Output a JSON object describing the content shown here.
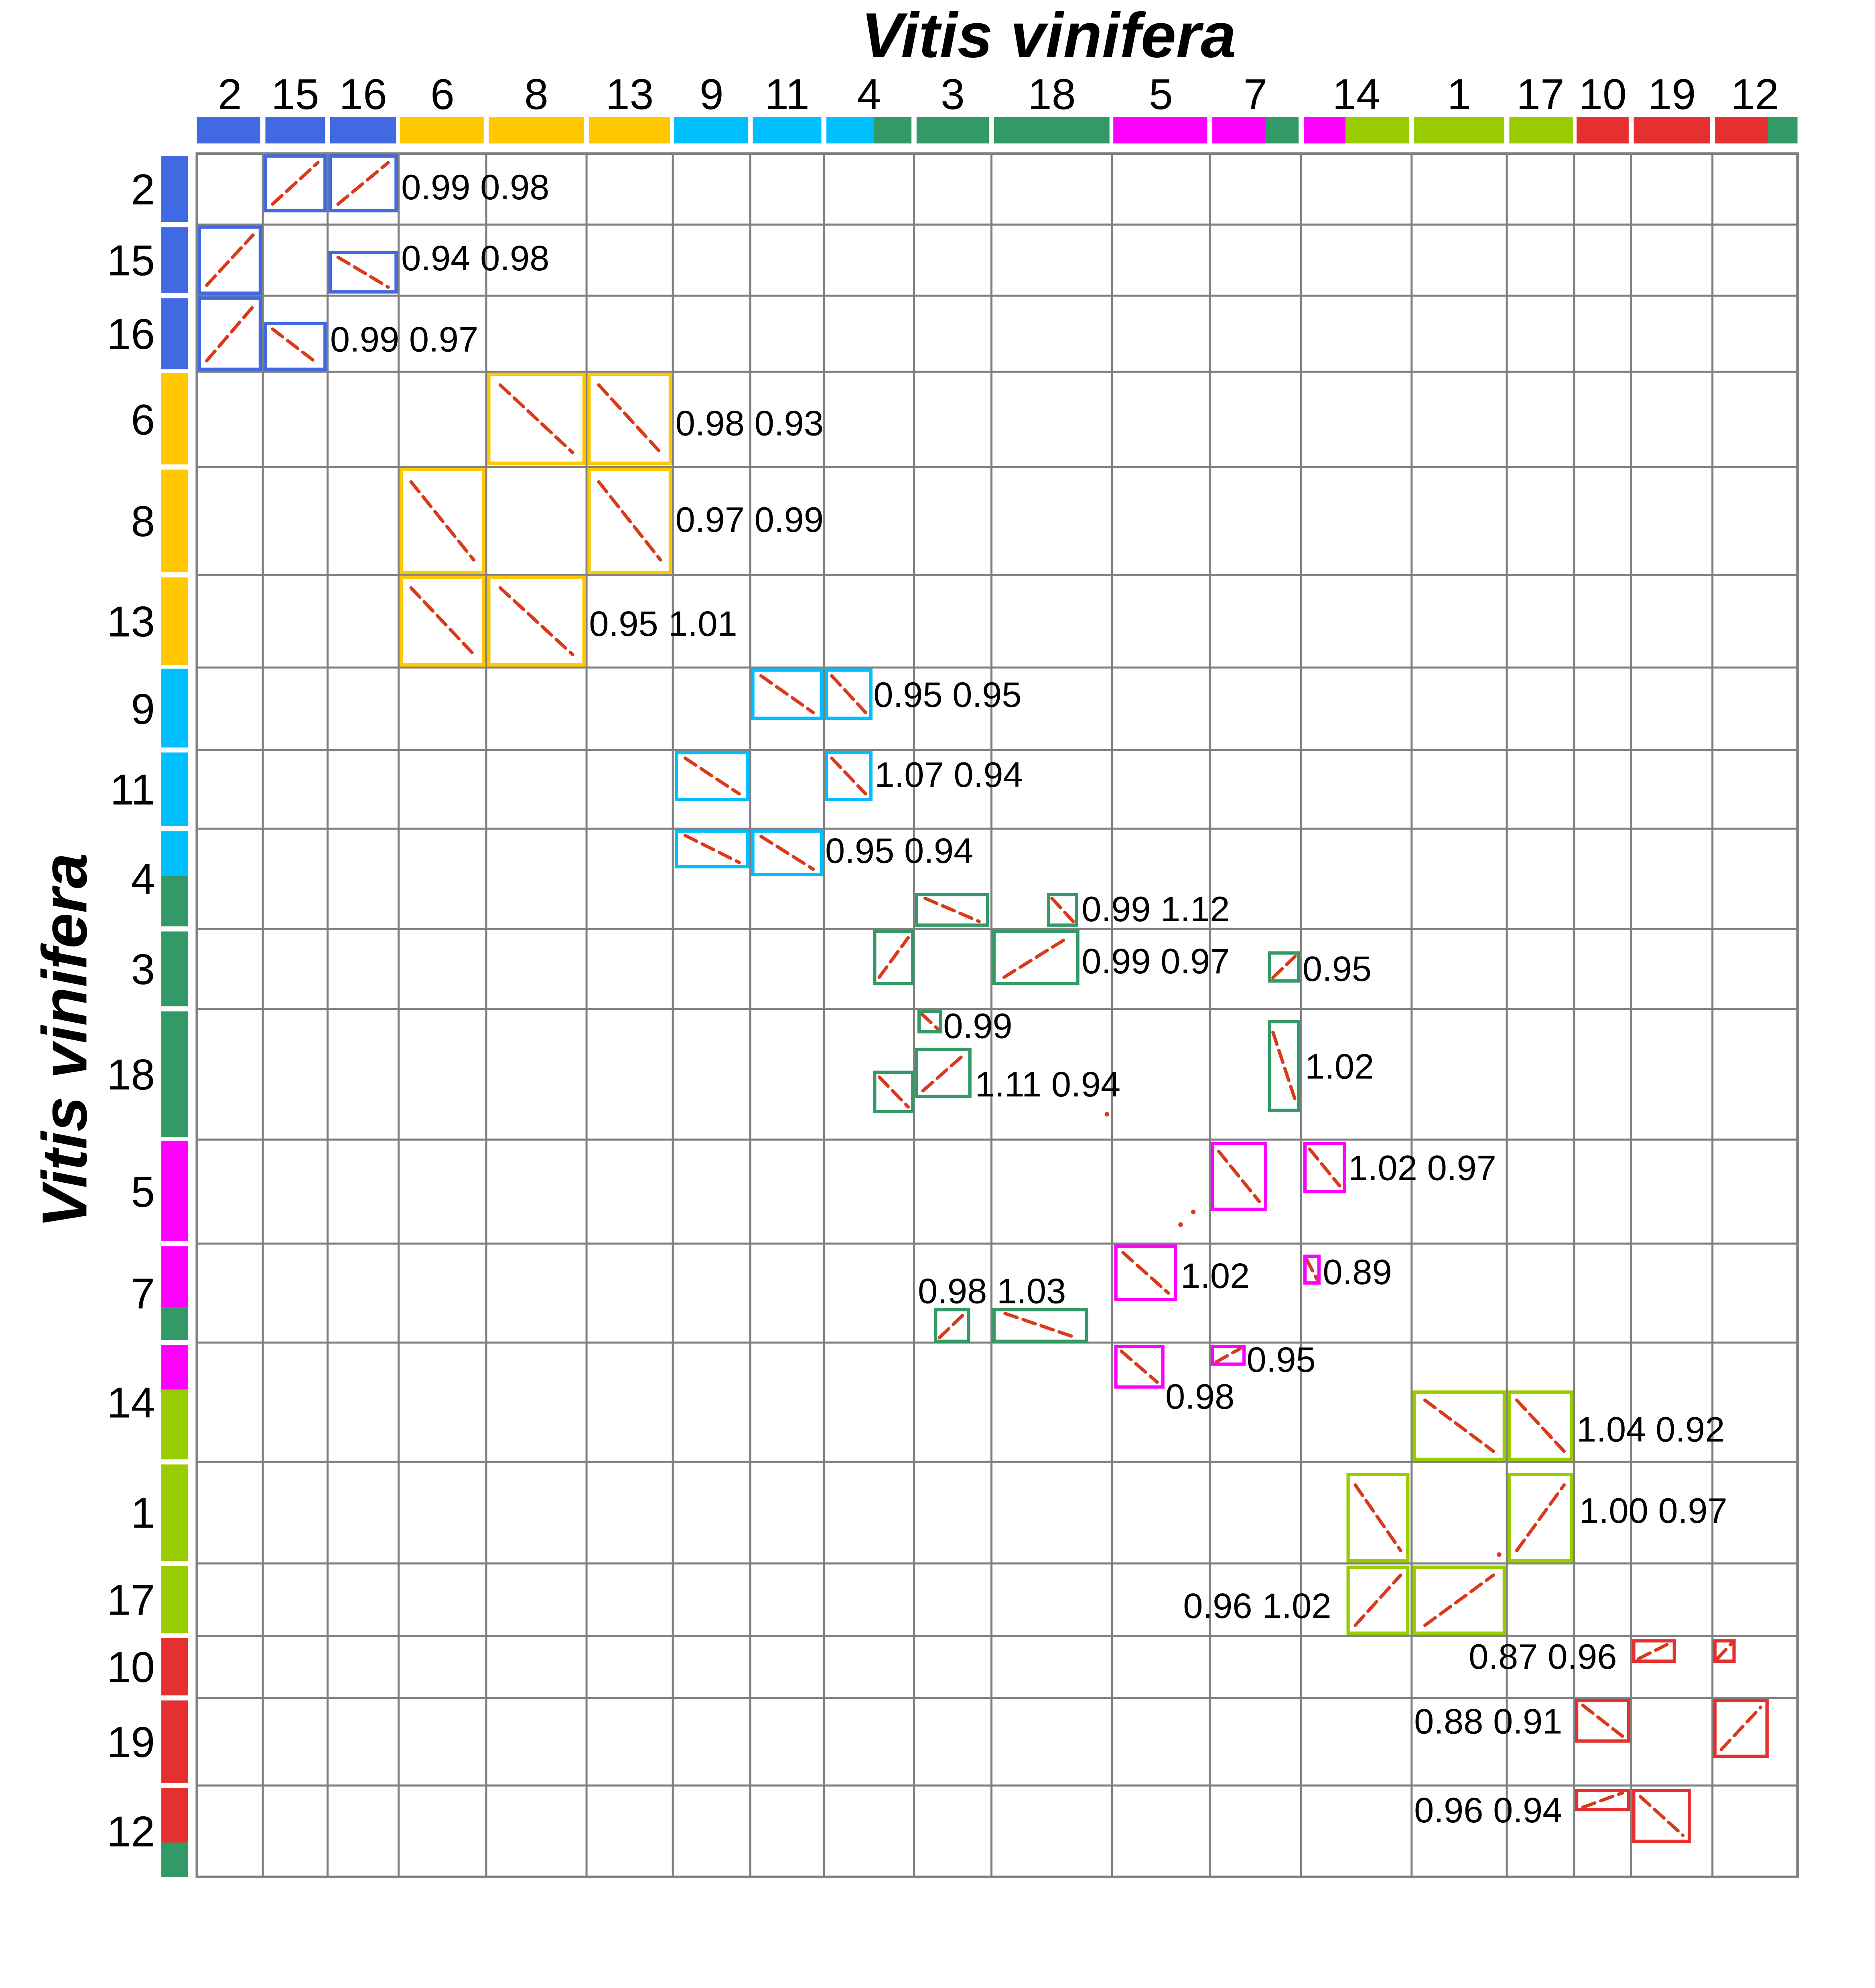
{
  "title_top": "Vitis vinifera",
  "title_left": "Vitis vinifera",
  "chromosome_order": [
    "2",
    "15",
    "16",
    "6",
    "8",
    "13",
    "9",
    "11",
    "4",
    "3",
    "18",
    "5",
    "7",
    "14",
    "1",
    "17",
    "10",
    "19",
    "12"
  ],
  "colors": {
    "blue": "#4169e1",
    "orange": "#ffc800",
    "cyan": "#00bfff",
    "green": "#339966",
    "magenta": "#ff00ff",
    "lime": "#99cc00",
    "red": "#e63030",
    "dot": "#d93a1a",
    "grid": "#808080"
  },
  "chr_colors": {
    "2": "blue",
    "15": "blue",
    "16": "blue",
    "6": "orange",
    "8": "orange",
    "13": "orange",
    "9": "cyan",
    "11": "cyan",
    "4": "cyan",
    "3": "green",
    "18": "green",
    "5": "magenta",
    "7": "magenta",
    "14": "lime",
    "1": "lime",
    "17": "lime",
    "10": "red",
    "19": "red",
    "12": "red"
  },
  "ratio_labels": [
    {
      "text": "0.99 0.98",
      "col": "16",
      "row": "2"
    },
    {
      "text": "0.94 0.98",
      "col": "16",
      "row": "15"
    },
    {
      "text": "0.99 0.97",
      "col": "15",
      "row": "16"
    },
    {
      "text": "0.98 0.93",
      "col": "13",
      "row": "6"
    },
    {
      "text": "0.97 0.99",
      "col": "13",
      "row": "8"
    },
    {
      "text": "0.95 1.01",
      "col": "8",
      "row": "13"
    },
    {
      "text": "0.95 0.95",
      "col": "4",
      "row": "9"
    },
    {
      "text": "1.07 0.94",
      "col": "4",
      "row": "11"
    },
    {
      "text": "0.95 0.94",
      "col": "11",
      "row": "4"
    },
    {
      "text": "0.99 1.12",
      "col": "18",
      "row": "4"
    },
    {
      "text": "0.99 0.97",
      "col": "18",
      "row": "3"
    },
    {
      "text": "0.95",
      "col": "7",
      "row": "3"
    },
    {
      "text": "0.99",
      "col": "3",
      "row": "18"
    },
    {
      "text": "1.11 0.94",
      "col": "3",
      "row": "18"
    },
    {
      "text": "1.02",
      "col": "7",
      "row": "18"
    },
    {
      "text": "1.02 0.97",
      "col": "14",
      "row": "5"
    },
    {
      "text": "1.02",
      "col": "5",
      "row": "7"
    },
    {
      "text": "0.89",
      "col": "14",
      "row": "7"
    },
    {
      "text": "0.98 1.03",
      "col": "3",
      "row": "7"
    },
    {
      "text": "0.95",
      "col": "7",
      "row": "14"
    },
    {
      "text": "0.98",
      "col": "5",
      "row": "14"
    },
    {
      "text": "1.04 0.92",
      "col": "17",
      "row": "14"
    },
    {
      "text": "1.00 0.97",
      "col": "17",
      "row": "1"
    },
    {
      "text": "0.96 1.02",
      "col": "14",
      "row": "17"
    },
    {
      "text": "0.87 0.96",
      "col": "10",
      "row": "10"
    },
    {
      "text": "0.88 0.91",
      "col": "1",
      "row": "19"
    },
    {
      "text": "0.96 0.94",
      "col": "1",
      "row": "12"
    }
  ]
}
